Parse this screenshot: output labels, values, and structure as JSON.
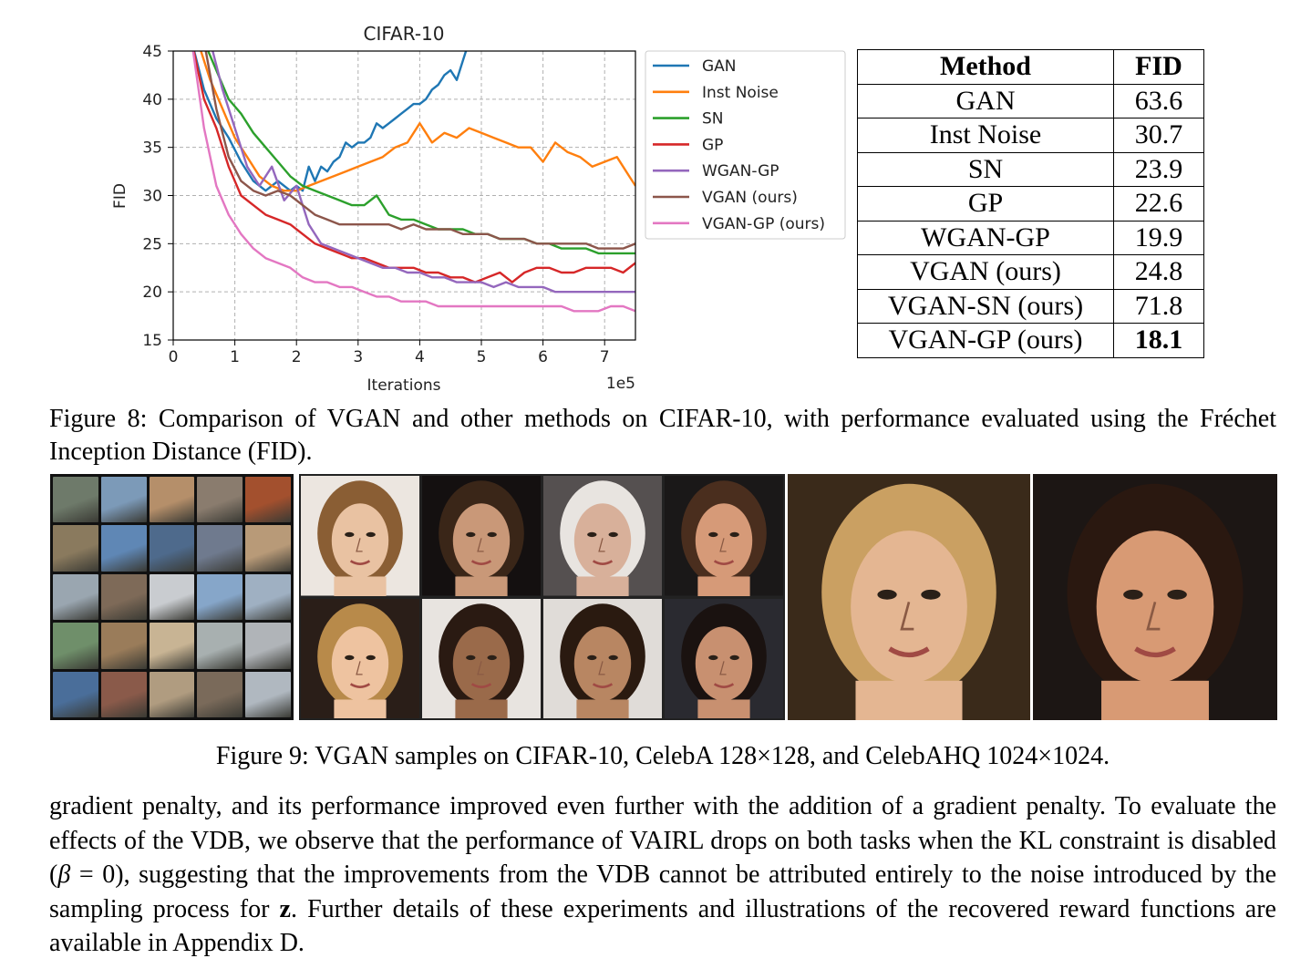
{
  "chart_data": {
    "type": "line",
    "title": "CIFAR-10",
    "xlabel": "Iterations",
    "ylabel": "FID",
    "x_offset_label": "1e5",
    "xlim": [
      0,
      7.5
    ],
    "ylim": [
      15,
      45
    ],
    "xticks": [
      "0",
      "1",
      "2",
      "3",
      "4",
      "5",
      "6",
      "7"
    ],
    "yticks": [
      "15",
      "20",
      "25",
      "30",
      "35",
      "40",
      "45"
    ],
    "grid": true,
    "legend_position": "outside-right",
    "series": [
      {
        "name": "GAN",
        "color": "#1f77b4",
        "x": [
          0.3,
          0.5,
          0.7,
          0.9,
          1.1,
          1.3,
          1.5,
          1.7,
          1.9,
          2.0,
          2.1,
          2.2,
          2.3,
          2.4,
          2.5,
          2.6,
          2.7,
          2.8,
          2.9,
          3.0,
          3.1,
          3.2,
          3.3,
          3.4,
          3.5,
          3.6,
          3.7,
          3.8,
          3.9,
          4.0,
          4.1,
          4.2,
          4.3,
          4.4,
          4.5,
          4.6,
          4.7,
          4.8
        ],
        "y": [
          46,
          41,
          38,
          36,
          33.5,
          31.5,
          30.5,
          31.5,
          30.5,
          31,
          30.5,
          33,
          31.5,
          33,
          32.5,
          33.5,
          34,
          35.5,
          35,
          35.5,
          35.5,
          36,
          37.5,
          37,
          37.5,
          38,
          38.5,
          39,
          39.5,
          39.5,
          40,
          41,
          41.5,
          42.5,
          43,
          42,
          44,
          46
        ]
      },
      {
        "name": "Inst Noise",
        "color": "#ff7f0e",
        "x": [
          0.4,
          0.6,
          0.8,
          1.0,
          1.2,
          1.4,
          1.6,
          1.8,
          2.0,
          2.2,
          2.4,
          2.6,
          2.8,
          3.0,
          3.2,
          3.4,
          3.6,
          3.8,
          4.0,
          4.1,
          4.2,
          4.4,
          4.6,
          4.8,
          5.0,
          5.2,
          5.4,
          5.6,
          5.8,
          6.0,
          6.2,
          6.4,
          6.6,
          6.8,
          7.0,
          7.2,
          7.4,
          7.5
        ],
        "y": [
          46,
          42,
          39,
          36,
          34,
          32,
          31,
          30.5,
          30.5,
          31,
          31.5,
          32,
          32.5,
          33,
          33.5,
          34,
          35,
          35.5,
          37.5,
          36.5,
          35.5,
          36.5,
          36,
          37,
          36.5,
          36,
          35.5,
          35,
          35,
          33.5,
          35.5,
          34.5,
          34,
          33,
          33.5,
          34,
          32,
          31
        ]
      },
      {
        "name": "SN",
        "color": "#2ca02c",
        "x": [
          0.5,
          0.7,
          0.9,
          1.1,
          1.3,
          1.5,
          1.7,
          1.9,
          2.1,
          2.3,
          2.5,
          2.7,
          2.9,
          3.1,
          3.3,
          3.5,
          3.7,
          3.9,
          4.1,
          4.3,
          4.5,
          4.7,
          4.9,
          5.1,
          5.3,
          5.5,
          5.7,
          5.9,
          6.1,
          6.3,
          6.5,
          6.7,
          6.9,
          7.1,
          7.3,
          7.5
        ],
        "y": [
          46,
          43,
          40,
          38.5,
          36.5,
          35,
          33.5,
          32,
          31,
          30.5,
          30,
          29.5,
          29,
          29,
          30,
          28,
          27.5,
          27.5,
          27,
          26.5,
          26.5,
          26.5,
          26,
          26,
          25.5,
          25.5,
          25.5,
          25,
          25,
          24.5,
          24.5,
          24.5,
          24,
          24,
          24,
          24
        ]
      },
      {
        "name": "GP",
        "color": "#d62728",
        "x": [
          0.3,
          0.5,
          0.7,
          0.9,
          1.1,
          1.3,
          1.5,
          1.7,
          1.9,
          2.1,
          2.3,
          2.5,
          2.7,
          2.9,
          3.1,
          3.3,
          3.5,
          3.7,
          3.9,
          4.1,
          4.3,
          4.5,
          4.7,
          4.9,
          5.1,
          5.3,
          5.5,
          5.7,
          5.9,
          6.1,
          6.3,
          6.5,
          6.7,
          6.9,
          7.1,
          7.3,
          7.5
        ],
        "y": [
          46,
          40,
          37,
          33,
          30,
          29,
          28,
          27.5,
          27,
          26,
          25,
          24.5,
          24,
          23.5,
          23.5,
          23,
          22.5,
          22.5,
          22.5,
          22,
          22,
          21.5,
          21.5,
          21,
          21.5,
          22,
          21,
          22,
          22.5,
          22.5,
          22,
          22,
          22.5,
          22.5,
          22.5,
          22,
          23
        ]
      },
      {
        "name": "WGAN-GP",
        "color": "#9467bd",
        "x": [
          0.6,
          0.8,
          1.0,
          1.2,
          1.4,
          1.6,
          1.8,
          2.0,
          2.2,
          2.4,
          2.6,
          2.8,
          3.0,
          3.2,
          3.4,
          3.6,
          3.8,
          4.0,
          4.2,
          4.4,
          4.6,
          4.8,
          5.0,
          5.2,
          5.4,
          5.6,
          5.8,
          6.0,
          6.2,
          6.4,
          6.6,
          6.8,
          7.0,
          7.2,
          7.4,
          7.5
        ],
        "y": [
          46,
          41,
          37,
          33,
          31,
          33,
          29.5,
          31,
          27,
          25,
          24.5,
          24,
          23.5,
          23,
          22.5,
          22.5,
          22,
          22,
          21.5,
          21.5,
          21,
          21,
          21,
          20.5,
          21,
          20.5,
          20.5,
          20.5,
          20,
          20,
          20,
          20,
          20,
          20,
          20,
          20
        ]
      },
      {
        "name": "VGAN (ours)",
        "color": "#8c564b",
        "x": [
          0.5,
          0.7,
          0.9,
          1.1,
          1.3,
          1.5,
          1.7,
          1.9,
          2.1,
          2.3,
          2.5,
          2.7,
          2.9,
          3.1,
          3.3,
          3.5,
          3.7,
          3.9,
          4.1,
          4.3,
          4.5,
          4.7,
          4.9,
          5.1,
          5.3,
          5.5,
          5.7,
          5.9,
          6.1,
          6.3,
          6.5,
          6.7,
          6.9,
          7.1,
          7.3,
          7.5
        ],
        "y": [
          46,
          39,
          34,
          31.5,
          30.5,
          30,
          30.5,
          30,
          29,
          28,
          27.5,
          27,
          27,
          27,
          27,
          27,
          26.5,
          27,
          26.5,
          26.5,
          26.5,
          26,
          26,
          26,
          25.5,
          25.5,
          25.5,
          25,
          25,
          25,
          25,
          25,
          24.5,
          24.5,
          24.5,
          25
        ]
      },
      {
        "name": "VGAN-GP (ours)",
        "color": "#e377c2",
        "x": [
          0.3,
          0.5,
          0.7,
          0.9,
          1.1,
          1.3,
          1.5,
          1.7,
          1.9,
          2.1,
          2.3,
          2.5,
          2.7,
          2.9,
          3.1,
          3.3,
          3.5,
          3.7,
          3.9,
          4.1,
          4.3,
          4.5,
          4.7,
          4.9,
          5.1,
          5.3,
          5.5,
          5.7,
          5.9,
          6.1,
          6.3,
          6.5,
          6.7,
          6.9,
          7.1,
          7.3,
          7.5
        ],
        "y": [
          46,
          37,
          31,
          28,
          26,
          24.5,
          23.5,
          23,
          22.5,
          21.5,
          21,
          21,
          20.5,
          20.5,
          20,
          19.5,
          19.5,
          19,
          19,
          19,
          18.5,
          18.5,
          18.5,
          18.5,
          18.5,
          18.5,
          18.5,
          18.5,
          18.5,
          18.5,
          18.5,
          18,
          18,
          18,
          18.5,
          18.5,
          18
        ]
      }
    ]
  },
  "table": {
    "headers": [
      "Method",
      "FID"
    ],
    "rows": [
      {
        "method": "GAN",
        "fid": "63.6"
      },
      {
        "method": "Inst Noise",
        "fid": "30.7"
      },
      {
        "method": "SN",
        "fid": "23.9"
      },
      {
        "method": "GP",
        "fid": "22.6"
      },
      {
        "method": "WGAN-GP",
        "fid": "19.9"
      },
      {
        "method": "VGAN (ours)",
        "fid": "24.8"
      },
      {
        "method": "VGAN-SN (ours)",
        "fid": "71.8"
      },
      {
        "method": "VGAN-GP (ours)",
        "fid": "18.1"
      }
    ]
  },
  "fig8_caption": "Figure 8: Comparison of VGAN and other methods on CIFAR-10, with performance evaluated using the Fréchet Inception Distance (FID).",
  "fig9_caption": "Figure 9: VGAN samples on CIFAR-10, CelebA 128×128, and CelebAHQ 1024×1024.",
  "body_text": {
    "p1": "gradient penalty, and its performance improved even further with the addition of a gradient penalty. To evaluate the effects of the VDB, we observe that the performance of VAIRL drops on both tasks when the KL constraint is disabled (",
    "beta": "β",
    "eq": " = 0",
    "p2": "), suggesting that the improvements from the VDB cannot be attributed entirely to the noise introduced by the sampling process for ",
    "z": "z",
    "p3": ". Further details of these experiments and illustrations of the recovered reward functions are available in Appendix D."
  },
  "cifar_colors": [
    "#6e7a6a",
    "#7c9ab8",
    "#b58f6a",
    "#8a7c6e",
    "#a3502e",
    "#8a7a5e",
    "#5f87b5",
    "#4e6a8c",
    "#6f7a8e",
    "#b89a78",
    "#9aa6b0",
    "#7e6a58",
    "#c9ccd0",
    "#86a6c9",
    "#9fb0c2",
    "#6f8f6a",
    "#9a7c5a",
    "#c8b494",
    "#a8b0b0",
    "#b0b4b8",
    "#4a6e9a",
    "#8a5a4a",
    "#b09c80",
    "#7a6a5a",
    "#b0b8c0"
  ],
  "celeba_faces": [
    {
      "skin": "#e9c2a2",
      "hair": "#8a5e34",
      "bg": "#ece6e0"
    },
    {
      "skin": "#c99878",
      "hair": "#3a2618",
      "bg": "#141010"
    },
    {
      "skin": "#d8b09a",
      "hair": "#e8e4e0",
      "bg": "#555050"
    },
    {
      "skin": "#d69a78",
      "hair": "#4a2e1e",
      "bg": "#1a1818"
    },
    {
      "skin": "#eec3a0",
      "hair": "#b88a4a",
      "bg": "#2a1e18"
    },
    {
      "skin": "#9a6a4a",
      "hair": "#2a1a12",
      "bg": "#e8e4e0"
    },
    {
      "skin": "#b88662",
      "hair": "#2a1a10",
      "bg": "#e0dcd8"
    },
    {
      "skin": "#c89070",
      "hair": "#1a1210",
      "bg": "#2a2a30"
    }
  ],
  "hq_faces": [
    {
      "skin": "#e4b692",
      "hair": "#caa062",
      "bg": "#3a2a1a"
    },
    {
      "skin": "#d89a74",
      "hair": "#2a1810",
      "bg": "#1c1614"
    }
  ]
}
